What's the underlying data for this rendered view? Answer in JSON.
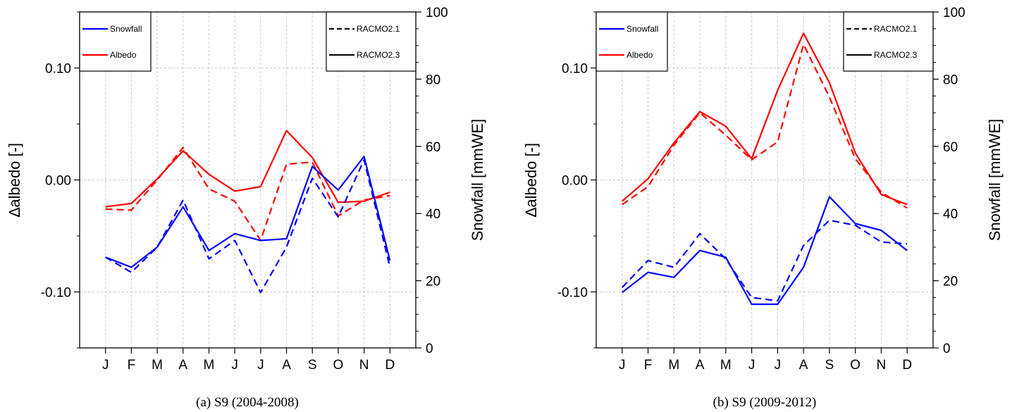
{
  "chart_data": [
    {
      "type": "line",
      "caption": "(a) S9 (2004-2008)",
      "categories": [
        "J",
        "F",
        "M",
        "A",
        "M",
        "J",
        "J",
        "A",
        "S",
        "O",
        "N",
        "D"
      ],
      "ylabel_left": "∆albedo [-]",
      "ylabel_right": "Snowfall [mmWE]",
      "ylim_left": [
        -0.15,
        0.15
      ],
      "ylim_right": [
        0,
        100
      ],
      "yticks_left": [
        "0.10",
        "0.00",
        "-0.10"
      ],
      "yticks_right": [
        "100",
        "80",
        "60",
        "40",
        "20",
        "0"
      ],
      "legend_left": [
        {
          "label": "Snowfall",
          "color": "#0000ff"
        },
        {
          "label": "Albedo",
          "color": "#ff0000"
        }
      ],
      "legend_right": [
        {
          "label": "RACMO2.1",
          "style": "dashed"
        },
        {
          "label": "RACMO2.3",
          "style": "solid"
        }
      ],
      "grid": true,
      "series": [
        {
          "variable": "Albedo",
          "model": "RACMO2.3",
          "axis": "left",
          "color": "#ff0000",
          "dash": false,
          "values": [
            -0.024,
            -0.021,
            0.001,
            0.026,
            0.005,
            -0.01,
            -0.006,
            0.044,
            0.02,
            -0.02,
            -0.019,
            -0.011
          ]
        },
        {
          "variable": "Albedo",
          "model": "RACMO2.1",
          "axis": "left",
          "color": "#ff0000",
          "dash": true,
          "values": [
            -0.026,
            -0.027,
            0.0,
            0.029,
            -0.008,
            -0.019,
            -0.054,
            0.014,
            0.016,
            -0.032,
            -0.018,
            -0.014
          ]
        },
        {
          "variable": "Snowfall",
          "model": "RACMO2.3",
          "axis": "right",
          "color": "#0000ff",
          "dash": false,
          "values": [
            27,
            24,
            30,
            42,
            29,
            34,
            32,
            32.5,
            54,
            47,
            57,
            26
          ]
        },
        {
          "variable": "Snowfall",
          "model": "RACMO2.1",
          "axis": "right",
          "color": "#0000ff",
          "dash": true,
          "values": [
            27,
            22.5,
            30,
            44,
            26.5,
            32,
            16.5,
            30,
            50.5,
            39,
            56,
            24
          ]
        }
      ]
    },
    {
      "type": "line",
      "caption": "(b) S9 (2009-2012)",
      "categories": [
        "J",
        "F",
        "M",
        "A",
        "M",
        "J",
        "J",
        "A",
        "S",
        "O",
        "N",
        "D"
      ],
      "ylabel_left": "∆albedo [-]",
      "ylabel_right": "Snowfall [mmWE]",
      "ylim_left": [
        -0.15,
        0.15
      ],
      "ylim_right": [
        0,
        100
      ],
      "yticks_left": [
        "0.10",
        "0.00",
        "-0.10"
      ],
      "yticks_right": [
        "100",
        "80",
        "60",
        "40",
        "20",
        "0"
      ],
      "legend_left": [
        {
          "label": "Snowfall",
          "color": "#0000ff"
        },
        {
          "label": "Albedo",
          "color": "#ff0000"
        }
      ],
      "legend_right": [
        {
          "label": "RACMO2.1",
          "style": "dashed"
        },
        {
          "label": "RACMO2.3",
          "style": "solid"
        }
      ],
      "grid": true,
      "series": [
        {
          "variable": "Albedo",
          "model": "RACMO2.3",
          "axis": "left",
          "color": "#ff0000",
          "dash": false,
          "values": [
            -0.019,
            0.001,
            0.033,
            0.061,
            0.048,
            0.019,
            0.08,
            0.131,
            0.087,
            0.024,
            -0.013,
            -0.022
          ]
        },
        {
          "variable": "Albedo",
          "model": "RACMO2.1",
          "axis": "left",
          "color": "#ff0000",
          "dash": true,
          "values": [
            -0.022,
            -0.006,
            0.031,
            0.06,
            0.04,
            0.018,
            0.034,
            0.121,
            0.074,
            0.019,
            -0.011,
            -0.025
          ]
        },
        {
          "variable": "Snowfall",
          "model": "RACMO2.3",
          "axis": "right",
          "color": "#0000ff",
          "dash": false,
          "values": [
            16.5,
            22.5,
            21,
            29,
            27,
            13,
            13,
            24,
            45,
            37,
            35,
            29
          ]
        },
        {
          "variable": "Snowfall",
          "model": "RACMO2.1",
          "axis": "right",
          "color": "#0000ff",
          "dash": true,
          "values": [
            18,
            26,
            24,
            34,
            26.5,
            15,
            14,
            30.5,
            38,
            36.5,
            31.5,
            31
          ]
        }
      ]
    }
  ]
}
